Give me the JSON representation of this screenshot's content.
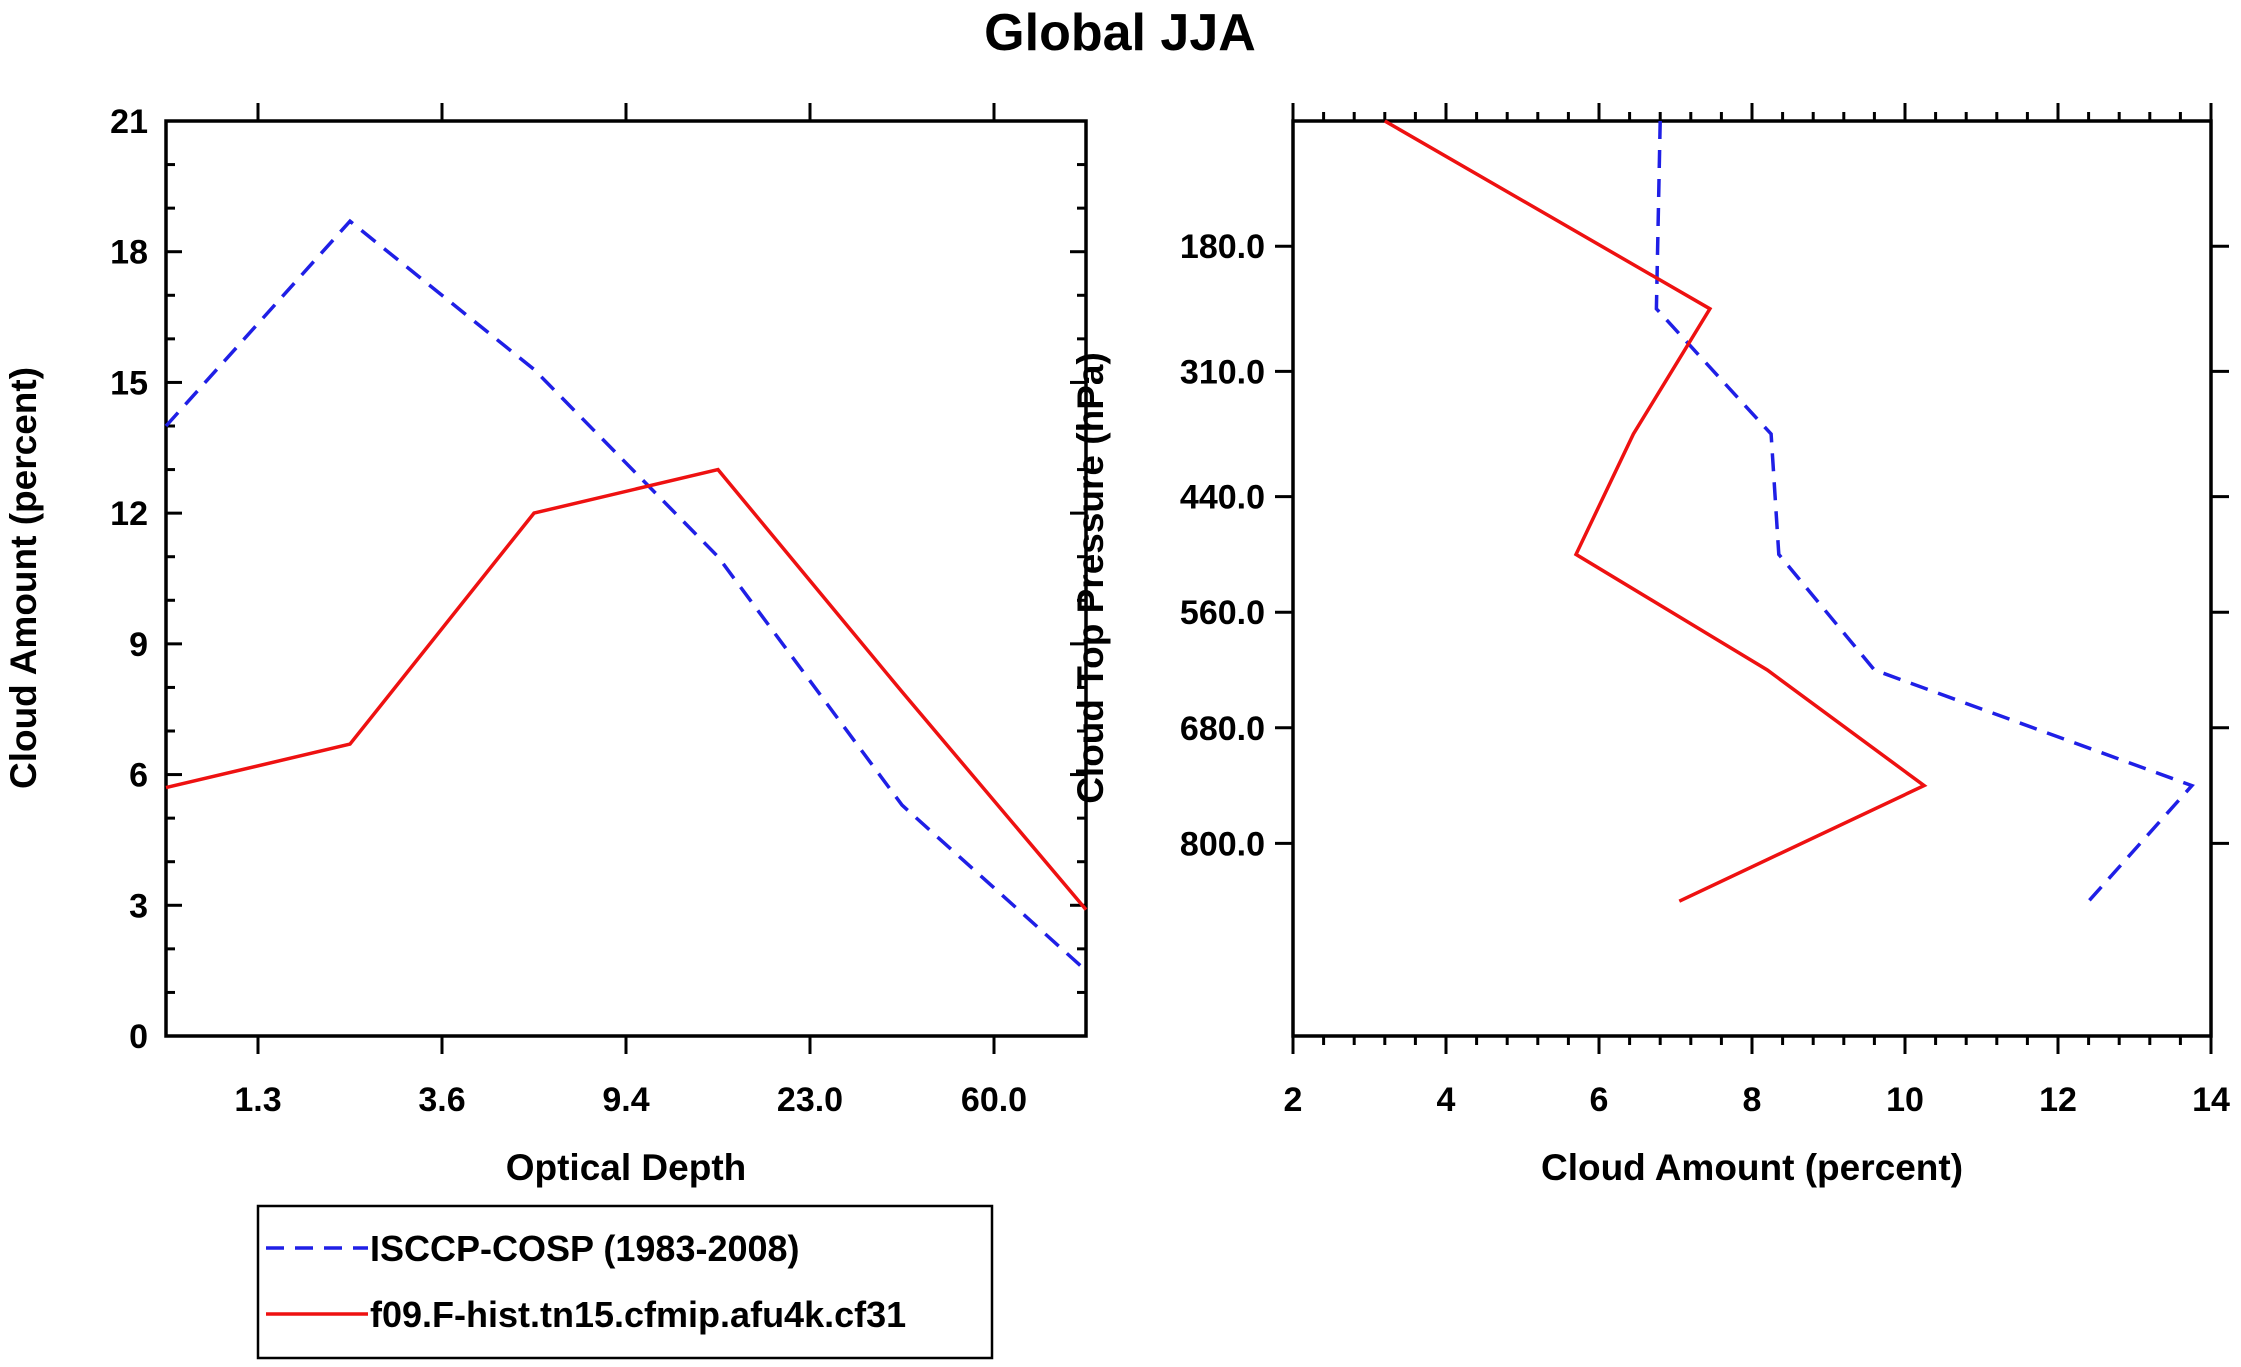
{
  "title": "Global JJA",
  "colors": {
    "obs": "#1f1fe6",
    "model": "#ee1111"
  },
  "legend": {
    "items": [
      {
        "label": "ISCCP-COSP (1983-2008)",
        "style": "dashed",
        "color": "#1f1fe6"
      },
      {
        "label": "f09.F-hist.tn15.cfmip.afu4k.cf31",
        "style": "solid",
        "color": "#ee1111"
      }
    ]
  },
  "chart_data": [
    {
      "type": "line",
      "panel": "left",
      "xlabel": "Optical Depth",
      "ylabel": "Cloud Amount (percent)",
      "x_bins": [
        1,
        2,
        3,
        4,
        5,
        6
      ],
      "xlim": [
        0.5,
        5.5
      ],
      "x_ticks": [
        {
          "x": 1,
          "label": "1.3"
        },
        {
          "x": 2,
          "label": "3.6"
        },
        {
          "x": 3,
          "label": "9.4"
        },
        {
          "x": 4,
          "label": "23.0"
        },
        {
          "x": 5,
          "label": "60.0"
        }
      ],
      "ylim": [
        0,
        21
      ],
      "y_ticks": [
        0,
        3,
        6,
        9,
        12,
        15,
        18,
        21
      ],
      "series": [
        {
          "name": "ISCCP-COSP (1983-2008)",
          "x": [
            0.5,
            1.5,
            2.5,
            3.5,
            4.5,
            5.5
          ],
          "values": [
            14.0,
            18.7,
            15.3,
            11.0,
            5.3,
            1.5
          ]
        },
        {
          "name": "f09.F-hist.tn15.cfmip.afu4k.cf31",
          "x": [
            0.5,
            1.5,
            2.5,
            3.5,
            4.5,
            5.5
          ],
          "values": [
            5.7,
            6.7,
            12.0,
            13.0,
            7.9,
            2.9
          ]
        }
      ]
    },
    {
      "type": "line",
      "panel": "right",
      "xlabel": "Cloud Amount (percent)",
      "ylabel": "Cloud Top Pressure (hPa)",
      "xlim": [
        2,
        14
      ],
      "x_ticks": [
        2,
        4,
        6,
        8,
        10,
        12,
        14
      ],
      "ylim": [
        50,
        1000
      ],
      "y_ticks": [
        {
          "y": 180,
          "label": "180.0"
        },
        {
          "y": 310,
          "label": "310.0"
        },
        {
          "y": 440,
          "label": "440.0"
        },
        {
          "y": 560,
          "label": "560.0"
        },
        {
          "y": 680,
          "label": "680.0"
        },
        {
          "y": 800,
          "label": "800.0"
        }
      ],
      "series": [
        {
          "name": "ISCCP-COSP (1983-2008)",
          "y": [
            50,
            245,
            375,
            500,
            620,
            740,
            860
          ],
          "values": [
            6.8,
            6.75,
            8.25,
            8.35,
            9.6,
            13.75,
            12.4
          ]
        },
        {
          "name": "f09.F-hist.tn15.cfmip.afu4k.cf31",
          "y": [
            50,
            245,
            375,
            500,
            620,
            740,
            860
          ],
          "values": [
            3.2,
            7.45,
            6.45,
            5.7,
            8.2,
            10.25,
            7.05
          ]
        }
      ]
    }
  ]
}
